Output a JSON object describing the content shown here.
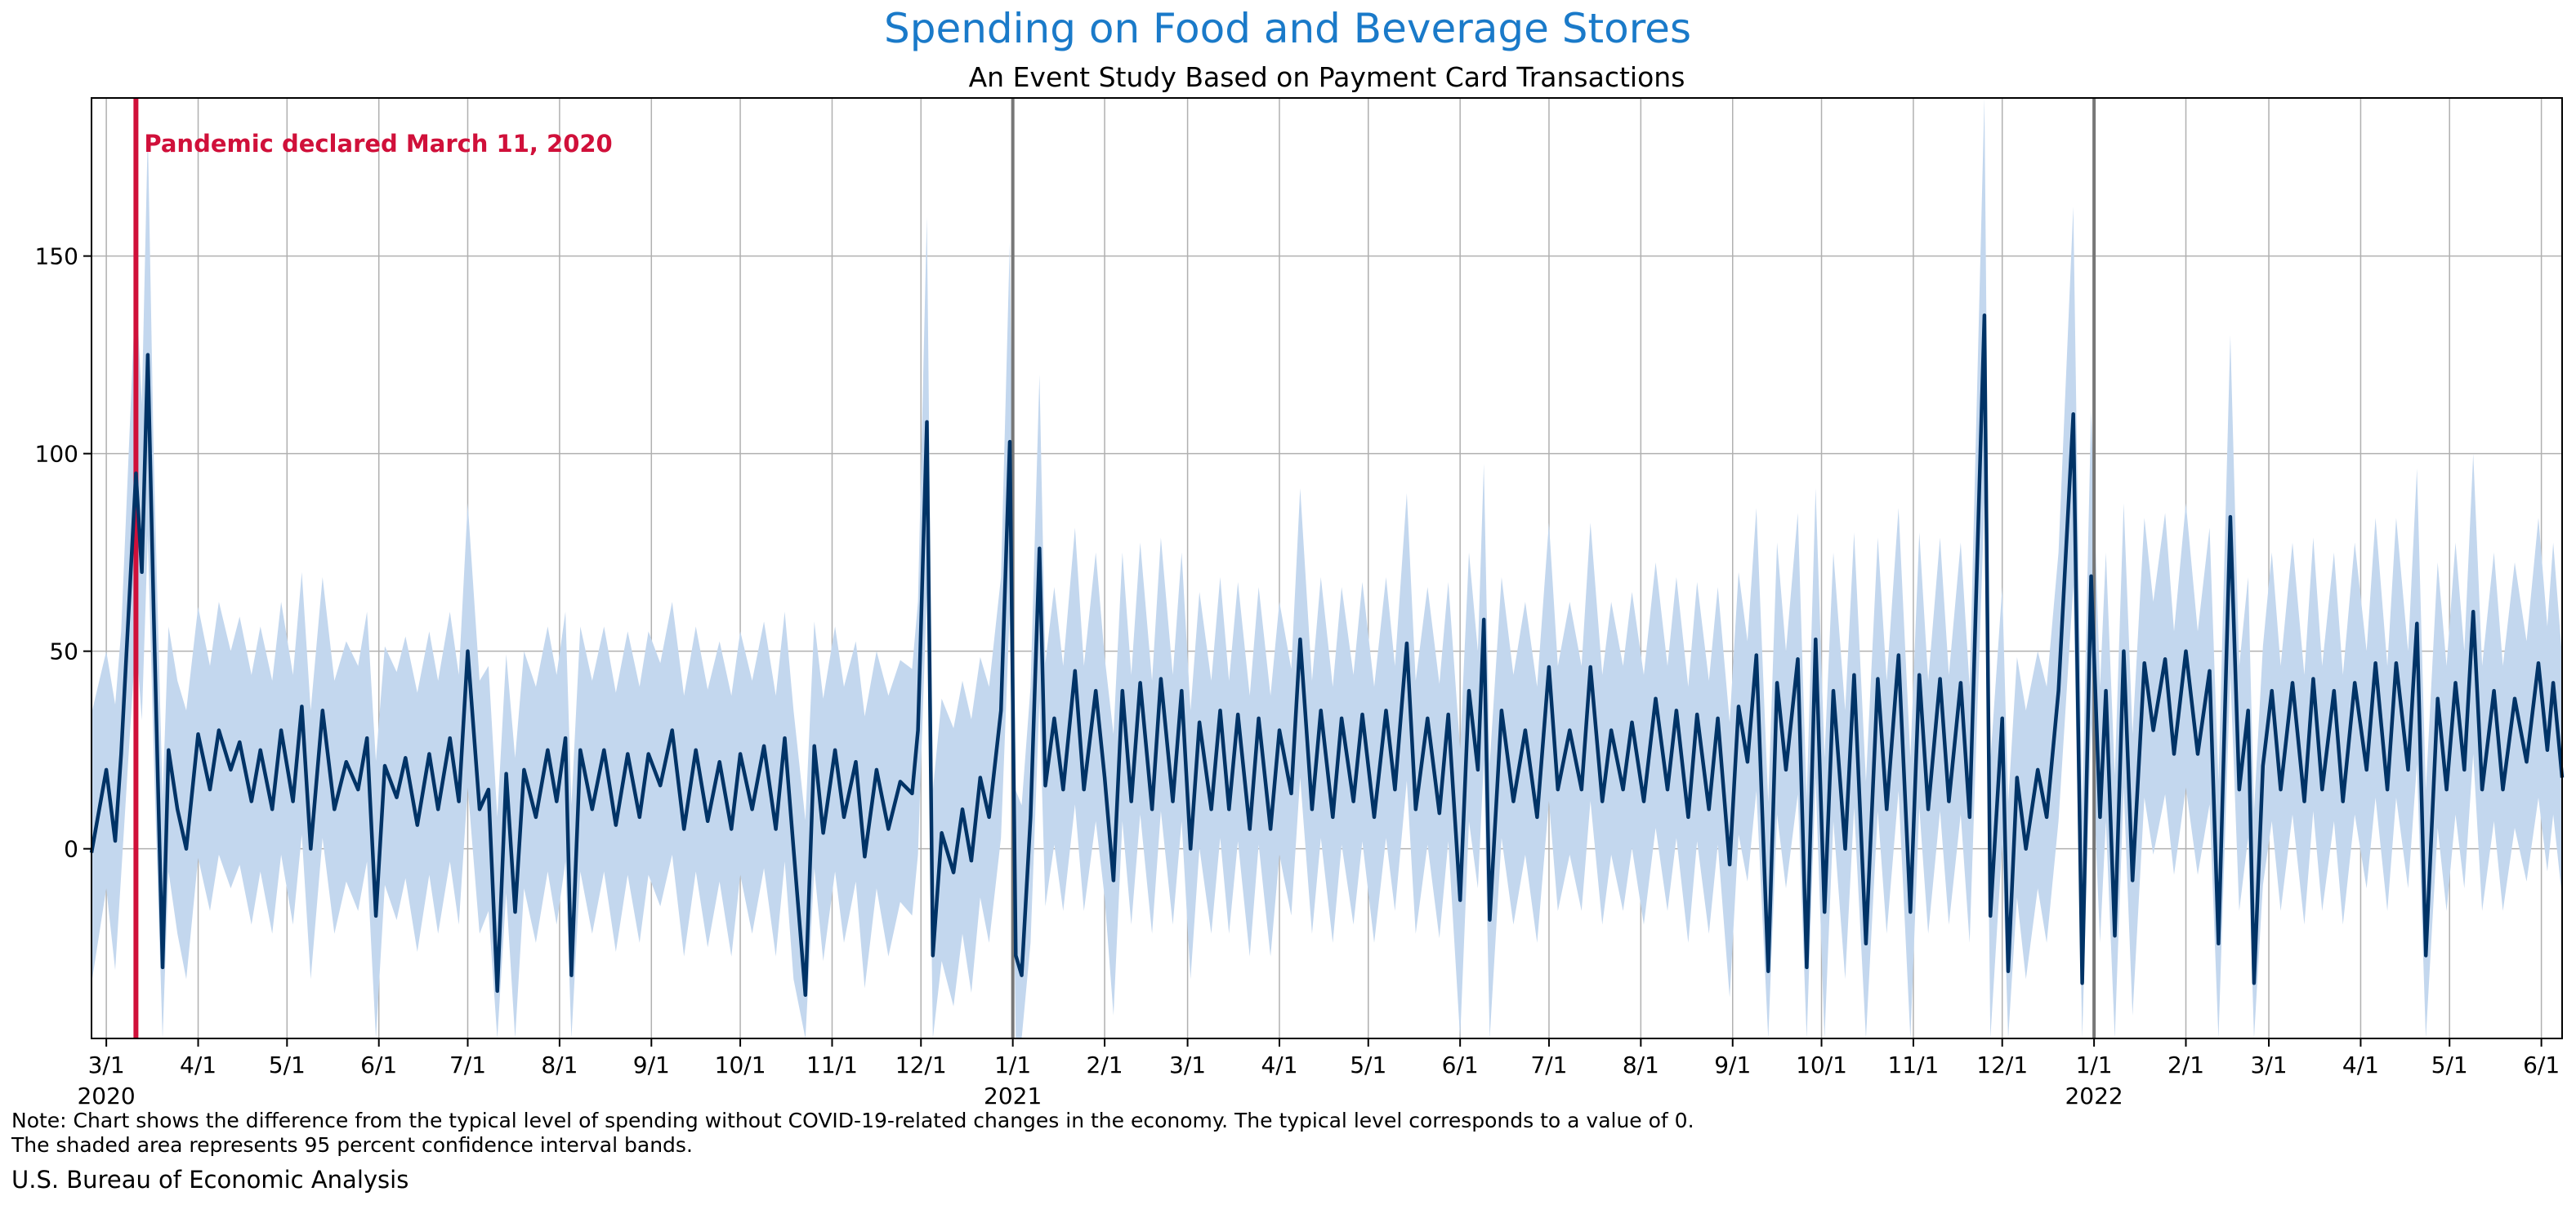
{
  "chart_data": {
    "type": "line",
    "title": "Spending on Food and Beverage Stores",
    "subtitle": "An Event Study Based on Payment Card Transactions",
    "x_range": [
      "2020-02-25",
      "2022-06-08"
    ],
    "ylim": [
      -48,
      190
    ],
    "y_ticks": [
      0,
      50,
      100,
      150
    ],
    "x_ticks": [
      {
        "date": "2020-03-01",
        "label": "3/1",
        "year": "2020"
      },
      {
        "date": "2020-04-01",
        "label": "4/1"
      },
      {
        "date": "2020-05-01",
        "label": "5/1"
      },
      {
        "date": "2020-06-01",
        "label": "6/1"
      },
      {
        "date": "2020-07-01",
        "label": "7/1"
      },
      {
        "date": "2020-08-01",
        "label": "8/1"
      },
      {
        "date": "2020-09-01",
        "label": "9/1"
      },
      {
        "date": "2020-10-01",
        "label": "10/1"
      },
      {
        "date": "2020-11-01",
        "label": "11/1"
      },
      {
        "date": "2020-12-01",
        "label": "12/1"
      },
      {
        "date": "2021-01-01",
        "label": "1/1",
        "year": "2021"
      },
      {
        "date": "2021-02-01",
        "label": "2/1"
      },
      {
        "date": "2021-03-01",
        "label": "3/1"
      },
      {
        "date": "2021-04-01",
        "label": "4/1"
      },
      {
        "date": "2021-05-01",
        "label": "5/1"
      },
      {
        "date": "2021-06-01",
        "label": "6/1"
      },
      {
        "date": "2021-07-01",
        "label": "7/1"
      },
      {
        "date": "2021-08-01",
        "label": "8/1"
      },
      {
        "date": "2021-09-01",
        "label": "9/1"
      },
      {
        "date": "2021-10-01",
        "label": "10/1"
      },
      {
        "date": "2021-11-01",
        "label": "11/1"
      },
      {
        "date": "2021-12-01",
        "label": "12/1"
      },
      {
        "date": "2022-01-01",
        "label": "1/1",
        "year": "2022"
      },
      {
        "date": "2022-02-01",
        "label": "2/1"
      },
      {
        "date": "2022-03-01",
        "label": "3/1"
      },
      {
        "date": "2022-04-01",
        "label": "4/1"
      },
      {
        "date": "2022-05-01",
        "label": "5/1"
      },
      {
        "date": "2022-06-01",
        "label": "6/1"
      }
    ],
    "grid": true,
    "series": [
      {
        "color": "#003366",
        "band_color": "#c3d7ee",
        "band_halfwidth": 30,
        "points": [
          [
            "2020-02-25",
            -1
          ],
          [
            "2020-03-01",
            20
          ],
          [
            "2020-03-04",
            2
          ],
          [
            "2020-03-06",
            24
          ],
          [
            "2020-03-11",
            95
          ],
          [
            "2020-03-13",
            70
          ],
          [
            "2020-03-15",
            125
          ],
          [
            "2020-03-17",
            60
          ],
          [
            "2020-03-20",
            -30
          ],
          [
            "2020-03-22",
            25
          ],
          [
            "2020-03-25",
            10
          ],
          [
            "2020-03-28",
            0
          ],
          [
            "2020-04-01",
            29
          ],
          [
            "2020-04-05",
            15
          ],
          [
            "2020-04-08",
            30
          ],
          [
            "2020-04-12",
            20
          ],
          [
            "2020-04-15",
            27
          ],
          [
            "2020-04-19",
            12
          ],
          [
            "2020-04-22",
            25
          ],
          [
            "2020-04-26",
            10
          ],
          [
            "2020-04-29",
            30
          ],
          [
            "2020-05-03",
            12
          ],
          [
            "2020-05-06",
            36
          ],
          [
            "2020-05-09",
            0
          ],
          [
            "2020-05-13",
            35
          ],
          [
            "2020-05-17",
            10
          ],
          [
            "2020-05-21",
            22
          ],
          [
            "2020-05-25",
            15
          ],
          [
            "2020-05-28",
            28
          ],
          [
            "2020-05-31",
            -17
          ],
          [
            "2020-06-03",
            21
          ],
          [
            "2020-06-07",
            13
          ],
          [
            "2020-06-10",
            23
          ],
          [
            "2020-06-14",
            6
          ],
          [
            "2020-06-18",
            24
          ],
          [
            "2020-06-21",
            10
          ],
          [
            "2020-06-25",
            28
          ],
          [
            "2020-06-28",
            12
          ],
          [
            "2020-07-01",
            50
          ],
          [
            "2020-07-05",
            10
          ],
          [
            "2020-07-08",
            15
          ],
          [
            "2020-07-11",
            -36
          ],
          [
            "2020-07-14",
            19
          ],
          [
            "2020-07-17",
            -16
          ],
          [
            "2020-07-20",
            20
          ],
          [
            "2020-07-24",
            8
          ],
          [
            "2020-07-28",
            25
          ],
          [
            "2020-07-31",
            12
          ],
          [
            "2020-08-03",
            28
          ],
          [
            "2020-08-05",
            -32
          ],
          [
            "2020-08-08",
            25
          ],
          [
            "2020-08-12",
            10
          ],
          [
            "2020-08-16",
            25
          ],
          [
            "2020-08-20",
            6
          ],
          [
            "2020-08-24",
            24
          ],
          [
            "2020-08-28",
            8
          ],
          [
            "2020-08-31",
            24
          ],
          [
            "2020-09-04",
            16
          ],
          [
            "2020-09-08",
            30
          ],
          [
            "2020-09-12",
            5
          ],
          [
            "2020-09-16",
            25
          ],
          [
            "2020-09-20",
            7
          ],
          [
            "2020-09-24",
            22
          ],
          [
            "2020-09-28",
            5
          ],
          [
            "2020-10-01",
            24
          ],
          [
            "2020-10-05",
            10
          ],
          [
            "2020-10-09",
            26
          ],
          [
            "2020-10-13",
            5
          ],
          [
            "2020-10-16",
            28
          ],
          [
            "2020-10-19",
            0
          ],
          [
            "2020-10-23",
            -37
          ],
          [
            "2020-10-26",
            26
          ],
          [
            "2020-10-29",
            4
          ],
          [
            "2020-11-02",
            25
          ],
          [
            "2020-11-05",
            8
          ],
          [
            "2020-11-09",
            22
          ],
          [
            "2020-11-12",
            -2
          ],
          [
            "2020-11-16",
            20
          ],
          [
            "2020-11-20",
            5
          ],
          [
            "2020-11-24",
            17
          ],
          [
            "2020-11-28",
            14
          ],
          [
            "2020-11-30",
            30
          ],
          [
            "2020-12-03",
            108
          ],
          [
            "2020-12-05",
            -27
          ],
          [
            "2020-12-08",
            4
          ],
          [
            "2020-12-12",
            -6
          ],
          [
            "2020-12-15",
            10
          ],
          [
            "2020-12-18",
            -3
          ],
          [
            "2020-12-21",
            18
          ],
          [
            "2020-12-24",
            8
          ],
          [
            "2020-12-28",
            35
          ],
          [
            "2020-12-31",
            103
          ],
          [
            "2021-01-02",
            -27
          ],
          [
            "2021-01-04",
            -32
          ],
          [
            "2021-01-07",
            8
          ],
          [
            "2021-01-10",
            76
          ],
          [
            "2021-01-12",
            16
          ],
          [
            "2021-01-15",
            33
          ],
          [
            "2021-01-18",
            15
          ],
          [
            "2021-01-22",
            45
          ],
          [
            "2021-01-25",
            15
          ],
          [
            "2021-01-29",
            40
          ],
          [
            "2021-02-01",
            18
          ],
          [
            "2021-02-04",
            -8
          ],
          [
            "2021-02-07",
            40
          ],
          [
            "2021-02-10",
            12
          ],
          [
            "2021-02-13",
            42
          ],
          [
            "2021-02-17",
            10
          ],
          [
            "2021-02-20",
            43
          ],
          [
            "2021-02-24",
            12
          ],
          [
            "2021-02-27",
            40
          ],
          [
            "2021-03-02",
            0
          ],
          [
            "2021-03-05",
            32
          ],
          [
            "2021-03-09",
            10
          ],
          [
            "2021-03-12",
            35
          ],
          [
            "2021-03-15",
            10
          ],
          [
            "2021-03-18",
            34
          ],
          [
            "2021-03-22",
            5
          ],
          [
            "2021-03-25",
            33
          ],
          [
            "2021-03-29",
            5
          ],
          [
            "2021-04-01",
            30
          ],
          [
            "2021-04-05",
            14
          ],
          [
            "2021-04-08",
            53
          ],
          [
            "2021-04-12",
            10
          ],
          [
            "2021-04-15",
            35
          ],
          [
            "2021-04-19",
            8
          ],
          [
            "2021-04-22",
            33
          ],
          [
            "2021-04-26",
            12
          ],
          [
            "2021-04-29",
            34
          ],
          [
            "2021-05-03",
            8
          ],
          [
            "2021-05-07",
            35
          ],
          [
            "2021-05-10",
            15
          ],
          [
            "2021-05-14",
            52
          ],
          [
            "2021-05-17",
            10
          ],
          [
            "2021-05-21",
            33
          ],
          [
            "2021-05-25",
            9
          ],
          [
            "2021-05-28",
            34
          ],
          [
            "2021-06-01",
            -13
          ],
          [
            "2021-06-04",
            40
          ],
          [
            "2021-06-07",
            20
          ],
          [
            "2021-06-09",
            58
          ],
          [
            "2021-06-11",
            -18
          ],
          [
            "2021-06-15",
            35
          ],
          [
            "2021-06-19",
            12
          ],
          [
            "2021-06-23",
            30
          ],
          [
            "2021-06-27",
            8
          ],
          [
            "2021-07-01",
            46
          ],
          [
            "2021-07-04",
            15
          ],
          [
            "2021-07-08",
            30
          ],
          [
            "2021-07-12",
            15
          ],
          [
            "2021-07-15",
            46
          ],
          [
            "2021-07-19",
            12
          ],
          [
            "2021-07-22",
            30
          ],
          [
            "2021-07-26",
            15
          ],
          [
            "2021-07-29",
            32
          ],
          [
            "2021-08-02",
            12
          ],
          [
            "2021-08-06",
            38
          ],
          [
            "2021-08-10",
            15
          ],
          [
            "2021-08-13",
            35
          ],
          [
            "2021-08-17",
            8
          ],
          [
            "2021-08-20",
            34
          ],
          [
            "2021-08-24",
            10
          ],
          [
            "2021-08-27",
            33
          ],
          [
            "2021-08-31",
            -4
          ],
          [
            "2021-09-03",
            36
          ],
          [
            "2021-09-06",
            22
          ],
          [
            "2021-09-09",
            49
          ],
          [
            "2021-09-13",
            -31
          ],
          [
            "2021-09-16",
            42
          ],
          [
            "2021-09-19",
            20
          ],
          [
            "2021-09-23",
            48
          ],
          [
            "2021-09-26",
            -30
          ],
          [
            "2021-09-29",
            53
          ],
          [
            "2021-10-02",
            -16
          ],
          [
            "2021-10-05",
            40
          ],
          [
            "2021-10-09",
            0
          ],
          [
            "2021-10-12",
            44
          ],
          [
            "2021-10-16",
            -24
          ],
          [
            "2021-10-20",
            43
          ],
          [
            "2021-10-23",
            10
          ],
          [
            "2021-10-27",
            49
          ],
          [
            "2021-10-31",
            -16
          ],
          [
            "2021-11-03",
            44
          ],
          [
            "2021-11-06",
            10
          ],
          [
            "2021-11-10",
            43
          ],
          [
            "2021-11-13",
            12
          ],
          [
            "2021-11-17",
            42
          ],
          [
            "2021-11-20",
            8
          ],
          [
            "2021-11-25",
            135
          ],
          [
            "2021-11-27",
            -17
          ],
          [
            "2021-12-01",
            33
          ],
          [
            "2021-12-03",
            -31
          ],
          [
            "2021-12-06",
            18
          ],
          [
            "2021-12-09",
            0
          ],
          [
            "2021-12-13",
            20
          ],
          [
            "2021-12-16",
            8
          ],
          [
            "2021-12-20",
            40
          ],
          [
            "2021-12-25",
            110
          ],
          [
            "2021-12-28",
            -34
          ],
          [
            "2021-12-31",
            69
          ],
          [
            "2022-01-03",
            8
          ],
          [
            "2022-01-05",
            40
          ],
          [
            "2022-01-08",
            -22
          ],
          [
            "2022-01-11",
            50
          ],
          [
            "2022-01-14",
            -8
          ],
          [
            "2022-01-18",
            47
          ],
          [
            "2022-01-21",
            30
          ],
          [
            "2022-01-25",
            48
          ],
          [
            "2022-01-28",
            24
          ],
          [
            "2022-02-01",
            50
          ],
          [
            "2022-02-05",
            24
          ],
          [
            "2022-02-09",
            45
          ],
          [
            "2022-02-12",
            -24
          ],
          [
            "2022-02-16",
            84
          ],
          [
            "2022-02-19",
            15
          ],
          [
            "2022-02-22",
            35
          ],
          [
            "2022-02-24",
            -34
          ],
          [
            "2022-02-27",
            21
          ],
          [
            "2022-03-02",
            40
          ],
          [
            "2022-03-05",
            15
          ],
          [
            "2022-03-09",
            42
          ],
          [
            "2022-03-13",
            12
          ],
          [
            "2022-03-16",
            43
          ],
          [
            "2022-03-19",
            15
          ],
          [
            "2022-03-23",
            40
          ],
          [
            "2022-03-26",
            12
          ],
          [
            "2022-03-30",
            42
          ],
          [
            "2022-04-03",
            20
          ],
          [
            "2022-04-06",
            47
          ],
          [
            "2022-04-10",
            15
          ],
          [
            "2022-04-13",
            47
          ],
          [
            "2022-04-17",
            20
          ],
          [
            "2022-04-20",
            57
          ],
          [
            "2022-04-23",
            -27
          ],
          [
            "2022-04-27",
            38
          ],
          [
            "2022-04-30",
            15
          ],
          [
            "2022-05-03",
            42
          ],
          [
            "2022-05-06",
            20
          ],
          [
            "2022-05-09",
            60
          ],
          [
            "2022-05-12",
            15
          ],
          [
            "2022-05-16",
            40
          ],
          [
            "2022-05-19",
            15
          ],
          [
            "2022-05-23",
            38
          ],
          [
            "2022-05-27",
            22
          ],
          [
            "2022-05-31",
            47
          ],
          [
            "2022-06-03",
            25
          ],
          [
            "2022-06-05",
            42
          ],
          [
            "2022-06-08",
            18
          ]
        ]
      }
    ],
    "event_line": {
      "date": "2020-03-11",
      "label": "Pandemic declared March 11, 2020",
      "color": "#d0103a"
    },
    "year_lines": [
      "2021-01-01",
      "2022-01-01"
    ]
  },
  "note": "Note: Chart shows the difference from the typical level of spending without COVID-19-related changes in the economy. The typical level corresponds to a value of 0.",
  "note2": "The shaded area represents 95 percent confidence interval bands.",
  "source": "U.S. Bureau of Economic Analysis",
  "colors": {
    "title": "#1a7ac9",
    "grid": "#b0b0b0",
    "year_line": "#777777"
  }
}
